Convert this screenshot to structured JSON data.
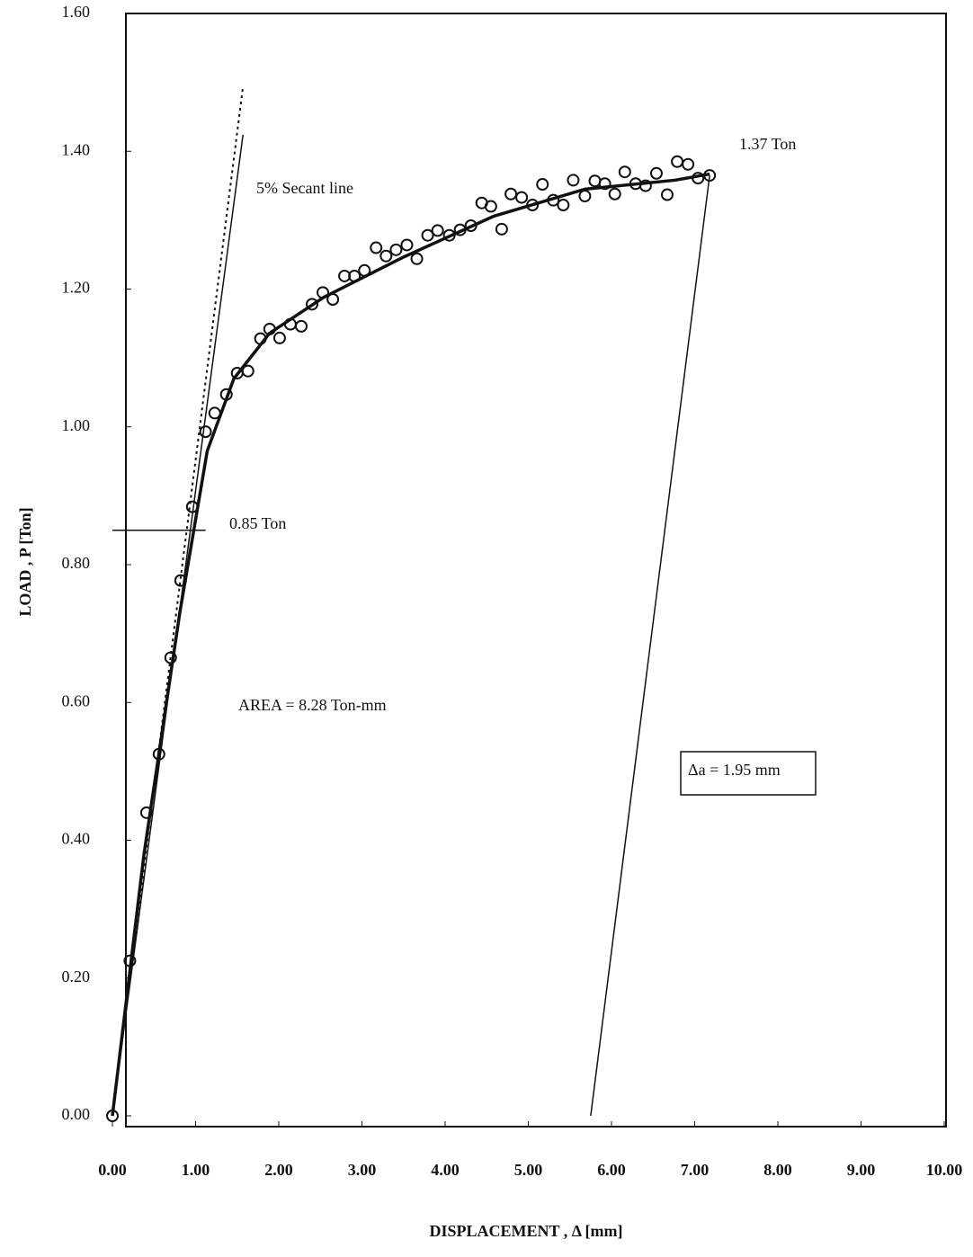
{
  "chart_data": {
    "type": "scatter",
    "x_label": "DISPLACEMENT , Δ  [mm]",
    "y_label": "LOAD , P  [Ton]",
    "xlim": [
      0,
      10
    ],
    "ylim": [
      0,
      1.6
    ],
    "xticks": [
      {
        "value": 0,
        "label": "0.00"
      },
      {
        "value": 1,
        "label": "1.00"
      },
      {
        "value": 2,
        "label": "2.00"
      },
      {
        "value": 3,
        "label": "3.00"
      },
      {
        "value": 4,
        "label": "4.00"
      },
      {
        "value": 5,
        "label": "5.00"
      },
      {
        "value": 6,
        "label": "6.00"
      },
      {
        "value": 7,
        "label": "7.00"
      },
      {
        "value": 8,
        "label": "8.00"
      },
      {
        "value": 9,
        "label": "9.00"
      },
      {
        "value": 10,
        "label": "10.00"
      }
    ],
    "yticks": [
      {
        "value": 0,
        "label": "0.00"
      },
      {
        "value": 0.2,
        "label": "0.20"
      },
      {
        "value": 0.4,
        "label": "0.40"
      },
      {
        "value": 0.6,
        "label": "0.60"
      },
      {
        "value": 0.8,
        "label": "0.80"
      },
      {
        "value": 1,
        "label": "1.00"
      },
      {
        "value": 1.2,
        "label": "1.20"
      },
      {
        "value": 1.4,
        "label": "1.40"
      },
      {
        "value": 1.6,
        "label": "1.60"
      }
    ],
    "grid": false,
    "color": "#111111",
    "x": [
      0,
      0.21,
      0.41,
      0.56,
      0.7,
      0.82,
      0.96,
      1.12,
      1.23,
      1.37,
      1.5,
      1.63,
      1.78,
      1.89,
      2.01,
      2.14,
      2.27,
      2.4,
      2.53,
      2.65,
      2.79,
      2.91,
      3.03,
      3.17,
      3.29,
      3.41,
      3.54,
      3.66,
      3.79,
      3.91,
      4.05,
      4.18,
      4.31,
      4.44,
      4.55,
      4.68,
      4.79,
      4.92,
      5.05,
      5.17,
      5.3,
      5.42,
      5.54,
      5.68,
      5.8,
      5.92,
      6.04,
      6.16,
      6.29,
      6.41,
      6.54,
      6.67,
      6.79,
      6.92,
      7.04,
      7.18
    ],
    "values": [
      0,
      0.225,
      0.44,
      0.525,
      0.665,
      0.777,
      0.884,
      0.993,
      1.02,
      1.047,
      1.078,
      1.081,
      1.128,
      1.142,
      1.129,
      1.149,
      1.146,
      1.178,
      1.195,
      1.185,
      1.219,
      1.219,
      1.227,
      1.26,
      1.248,
      1.257,
      1.264,
      1.244,
      1.278,
      1.285,
      1.278,
      1.286,
      1.292,
      1.325,
      1.32,
      1.287,
      1.338,
      1.333,
      1.322,
      1.352,
      1.329,
      1.322,
      1.358,
      1.335,
      1.357,
      1.353,
      1.338,
      1.37,
      1.353,
      1.35,
      1.368,
      1.337,
      1.385,
      1.381,
      1.361,
      1.365
    ],
    "curve": {
      "x": [
        0,
        0.38,
        0.81,
        1.14,
        1.46,
        1.89,
        2.54,
        3.51,
        4.59,
        5.68,
        6.76,
        7.18
      ],
      "y": [
        0,
        0.38,
        0.73,
        0.965,
        1.07,
        1.136,
        1.188,
        1.247,
        1.306,
        1.345,
        1.358,
        1.367
      ]
    },
    "tangent_line": {
      "x": [
        0,
        1.57
      ],
      "y": [
        0,
        1.494
      ]
    },
    "secant_line": {
      "x": [
        0,
        1.57
      ],
      "y": [
        0,
        1.424
      ]
    },
    "yield_line": {
      "x": [
        0,
        1.12
      ],
      "y": [
        0.85,
        0.85
      ]
    },
    "unload_line": {
      "x": [
        7.18,
        5.75
      ],
      "y": [
        1.365,
        0
      ]
    },
    "annotations": [
      "1.37 Ton",
      "5% Secant line",
      "0.85 Ton",
      "AREA = 8.28 Ton-mm",
      "Δa = 1.95 mm"
    ]
  }
}
